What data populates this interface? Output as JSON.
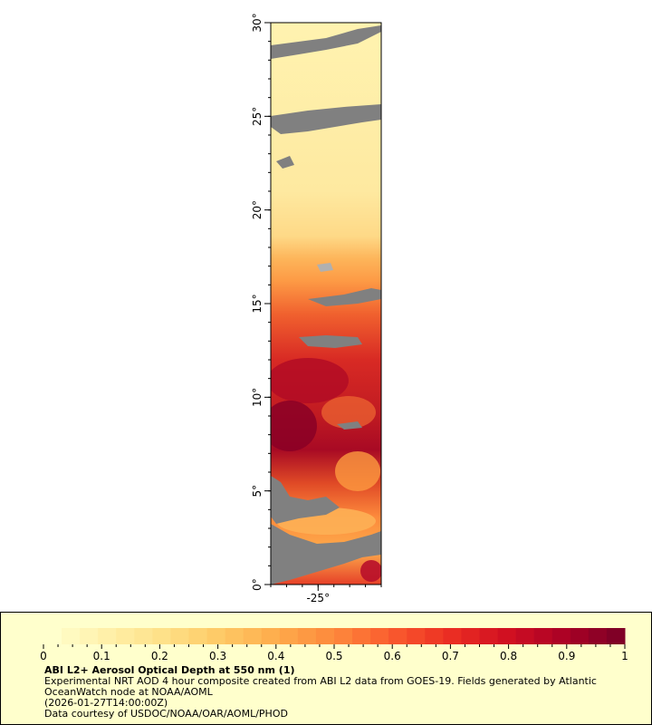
{
  "map": {
    "lat_ticks": [
      {
        "value": 0,
        "label": "0°"
      },
      {
        "value": 5,
        "label": "5°"
      },
      {
        "value": 10,
        "label": "10°"
      },
      {
        "value": 15,
        "label": "15°"
      },
      {
        "value": 20,
        "label": "20°"
      },
      {
        "value": 25,
        "label": "25°"
      },
      {
        "value": 30,
        "label": "30°"
      }
    ],
    "lon_ticks": [
      {
        "value": -25,
        "label": "-25°"
      }
    ],
    "lat_range": [
      0,
      30
    ],
    "lon_range": [
      -28,
      -21
    ],
    "colors": {
      "land_or_missing": "#808080",
      "frame": "#000000"
    }
  },
  "colorbar": {
    "min": 0,
    "max": 1,
    "tick_labels": [
      "0",
      "0.1",
      "0.2",
      "0.3",
      "0.4",
      "0.5",
      "0.6",
      "0.7",
      "0.8",
      "0.9",
      "1"
    ],
    "colors": [
      "#ffffcc",
      "#fff0a8",
      "#fee087",
      "#fec965",
      "#feab4b",
      "#fd893c",
      "#fa5c2e",
      "#ec3023",
      "#d31121",
      "#af0225",
      "#800026"
    ]
  },
  "caption": {
    "title": "ABI L2+ Aerosol Optical Depth at 550 nm (1)",
    "line1": "Experimental NRT AOD 4 hour composite created from ABI L2 data from GOES-19. Fields generated by Atlantic",
    "line2": "OceanWatch node at NOAA/AOML",
    "line3": "(2026-01-27T14:00:00Z)",
    "line4": "Data courtesy of USDOC/NOAA/OAR/AOML/PHOD"
  },
  "panel_background": "#ffffcc"
}
